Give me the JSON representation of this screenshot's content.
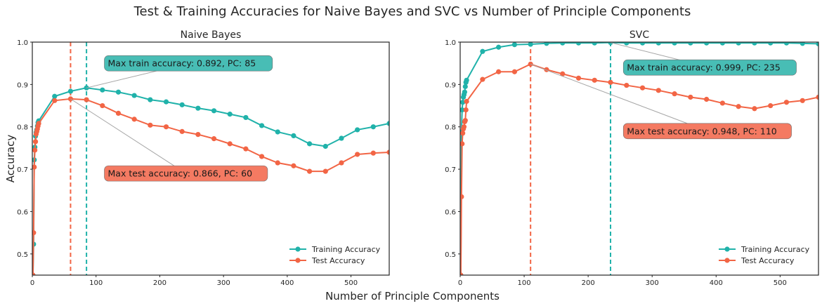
{
  "title": "Test & Training Accuracies for Naive Bayes and SVC vs Number of Principle Components",
  "xlabel": "Number of Principle Components",
  "ylabel": "Accuracy",
  "colors": {
    "train": "#20b2aa",
    "test": "#f26545",
    "train_box": "#48bdb5",
    "test_box": "#f47a62"
  },
  "chart_data": [
    {
      "type": "line",
      "title": "Naive Bayes",
      "xlim": [
        0,
        560
      ],
      "ylim": [
        0.45,
        1.0
      ],
      "xticks": [
        0,
        100,
        200,
        300,
        400,
        500
      ],
      "yticks": [
        0.5,
        0.6,
        0.7,
        0.8,
        0.9,
        1.0
      ],
      "grid": false,
      "legend_position": "lower-right",
      "x": [
        1,
        2,
        3,
        4,
        5,
        6,
        7,
        8,
        9,
        10,
        35,
        60,
        85,
        110,
        135,
        160,
        185,
        210,
        235,
        260,
        285,
        310,
        335,
        360,
        385,
        410,
        435,
        460,
        485,
        510,
        535,
        560
      ],
      "series": [
        {
          "name": "Training Accuracy",
          "role": "train",
          "values": [
            0.45,
            0.523,
            0.722,
            0.752,
            0.778,
            0.787,
            0.793,
            0.802,
            0.81,
            0.814,
            0.872,
            0.884,
            0.892,
            0.887,
            0.882,
            0.874,
            0.864,
            0.859,
            0.852,
            0.844,
            0.838,
            0.83,
            0.822,
            0.803,
            0.788,
            0.779,
            0.76,
            0.754,
            0.773,
            0.793,
            0.8,
            0.808
          ]
        },
        {
          "name": "Test Accuracy",
          "role": "test",
          "values": [
            0.45,
            0.55,
            0.705,
            0.745,
            0.765,
            0.783,
            0.789,
            0.795,
            0.802,
            0.808,
            0.862,
            0.866,
            0.864,
            0.85,
            0.832,
            0.818,
            0.804,
            0.8,
            0.789,
            0.782,
            0.772,
            0.76,
            0.748,
            0.73,
            0.715,
            0.708,
            0.695,
            0.695,
            0.715,
            0.735,
            0.738,
            0.74
          ]
        }
      ],
      "vlines": [
        {
          "x": 60,
          "role": "test"
        },
        {
          "x": 85,
          "role": "train"
        }
      ],
      "annotations": [
        {
          "text": "Max train accuracy: 0.892, PC: 85",
          "role": "train",
          "target": [
            85,
            0.892
          ],
          "box_at": [
            113,
            0.95
          ]
        },
        {
          "text": "Max test accuracy: 0.866, PC: 60",
          "role": "test",
          "target": [
            60,
            0.866
          ],
          "box_at": [
            113,
            0.69
          ]
        }
      ]
    },
    {
      "type": "line",
      "title": "SVC",
      "xlim": [
        0,
        560
      ],
      "ylim": [
        0.45,
        1.0
      ],
      "xticks": [
        0,
        100,
        200,
        300,
        400,
        500
      ],
      "yticks": [
        0.5,
        0.6,
        0.7,
        0.8,
        0.9,
        1.0
      ],
      "grid": false,
      "legend_position": "lower-right",
      "x": [
        1,
        2,
        3,
        4,
        5,
        6,
        7,
        8,
        9,
        10,
        35,
        60,
        85,
        110,
        135,
        160,
        185,
        210,
        235,
        260,
        285,
        310,
        335,
        360,
        385,
        410,
        435,
        460,
        485,
        510,
        535,
        560
      ],
      "series": [
        {
          "name": "Training Accuracy",
          "role": "train",
          "values": [
            0.45,
            0.788,
            0.84,
            0.858,
            0.87,
            0.876,
            0.882,
            0.895,
            0.905,
            0.91,
            0.978,
            0.988,
            0.994,
            0.995,
            0.997,
            0.998,
            0.998,
            0.998,
            0.999,
            0.998,
            0.998,
            0.998,
            0.998,
            0.998,
            0.998,
            0.998,
            0.998,
            0.998,
            0.998,
            0.998,
            0.997,
            0.996
          ]
        },
        {
          "name": "Test Accuracy",
          "role": "test",
          "values": [
            0.45,
            0.635,
            0.76,
            0.785,
            0.795,
            0.8,
            0.812,
            0.815,
            0.84,
            0.86,
            0.912,
            0.93,
            0.93,
            0.948,
            0.935,
            0.925,
            0.915,
            0.91,
            0.905,
            0.898,
            0.892,
            0.886,
            0.878,
            0.87,
            0.865,
            0.856,
            0.848,
            0.843,
            0.85,
            0.858,
            0.862,
            0.87
          ]
        }
      ],
      "vlines": [
        {
          "x": 110,
          "role": "test"
        },
        {
          "x": 235,
          "role": "train"
        }
      ],
      "annotations": [
        {
          "text": "Max train accuracy: 0.999, PC: 235",
          "role": "train",
          "target": [
            235,
            0.999
          ],
          "box_at": [
            255,
            0.94
          ]
        },
        {
          "text": "Max test accuracy: 0.948, PC: 110",
          "role": "test",
          "target": [
            110,
            0.948
          ],
          "box_at": [
            255,
            0.79
          ]
        }
      ]
    }
  ]
}
